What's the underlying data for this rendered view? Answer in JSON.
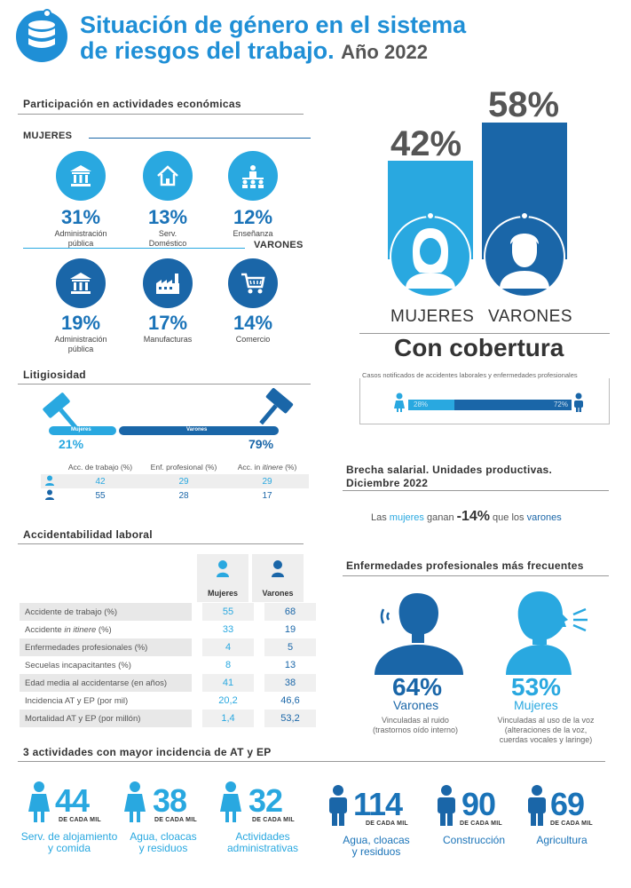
{
  "header": {
    "title_line1": "Situación de género en el sistema",
    "title_line2": "de riesgos del trabajo.",
    "year": "Año 2022",
    "icon": "database-icon"
  },
  "participation": {
    "title": "Participación en actividades económicas",
    "mujeres_label": "MUJERES",
    "varones_label": "VARONES",
    "mujeres": [
      {
        "pct": "31%",
        "label1": "Administración",
        "label2": "pública",
        "icon": "government-building-icon"
      },
      {
        "pct": "13%",
        "label1": "Serv.",
        "label2": "Doméstico",
        "icon": "house-icon"
      },
      {
        "pct": "12%",
        "label1": "Enseñanza",
        "label2": "",
        "icon": "classroom-icon"
      }
    ],
    "varones": [
      {
        "pct": "19%",
        "label1": "Administración",
        "label2": "pública",
        "icon": "government-building-icon"
      },
      {
        "pct": "17%",
        "label1": "Manufacturas",
        "label2": "",
        "icon": "factory-icon"
      },
      {
        "pct": "14%",
        "label1": "Comercio",
        "label2": "",
        "icon": "shopping-cart-icon"
      }
    ]
  },
  "coverage": {
    "mujeres_pct": "42%",
    "varones_pct": "58%",
    "mujeres_value": 42,
    "varones_value": 58,
    "mujeres_label": "MUJERES",
    "varones_label": "VARONES",
    "title": "Con cobertura",
    "cases_caption": "Casos notificados de accidentes laborales y enfermedades profesionales",
    "cases_mujeres_pct": "28%",
    "cases_varones_pct": "72%",
    "cases_mujeres_value": 28,
    "cases_varones_value": 72,
    "colors": {
      "mujeres": "#29a8e0",
      "varones": "#1a66a8"
    }
  },
  "litigiosidad": {
    "title": "Litigiosidad",
    "mujeres_label": "Mujeres",
    "varones_label": "Varones",
    "mujeres_pct": "21%",
    "varones_pct": "79%",
    "headers": [
      "Acc. de trabajo (%)",
      "Enf. profesional (%)",
      "Acc. in "
    ],
    "header_italic": "itinere",
    "header_tail": " (%)",
    "rows": [
      {
        "values": [
          "42",
          "29",
          "29"
        ]
      },
      {
        "values": [
          "55",
          "28",
          "17"
        ]
      }
    ]
  },
  "brecha": {
    "title_line1": "Brecha salarial. Unidades productivas.",
    "title_line2": "Diciembre 2022",
    "text_pre": "Las ",
    "text_women": "mujeres",
    "text_mid": " ganan ",
    "value": "-14%",
    "text_post": " que los ",
    "text_men": "varones"
  },
  "accidentabilidad": {
    "title": "Accidentabilidad laboral",
    "col_mujeres": "Mujeres",
    "col_varones": "Varones",
    "rows": [
      {
        "label": "Accidente de trabajo (%)",
        "mujeres": "55",
        "varones": "68"
      },
      {
        "label_pre": "Accidente ",
        "label_it": "in itinere",
        "label_post": " (%)",
        "mujeres": "33",
        "varones": "19"
      },
      {
        "label": "Enfermedades profesionales (%)",
        "mujeres": "4",
        "varones": "5"
      },
      {
        "label": "Secuelas incapacitantes (%)",
        "mujeres": "8",
        "varones": "13"
      },
      {
        "label": "Edad media al accidentarse (en años)",
        "mujeres": "41",
        "varones": "38"
      },
      {
        "label": "Incidencia AT y EP (por mil)",
        "mujeres": "20,2",
        "varones": "46,6"
      },
      {
        "label": "Mortalidad AT y EP (por millón)",
        "mujeres": "1,4",
        "varones": "53,2"
      }
    ]
  },
  "enfermedades": {
    "title": "Enfermedades profesionales más frecuentes",
    "varones_pct": "64%",
    "varones_label": "Varones",
    "varones_desc1": "Vinculadas al ruido",
    "varones_desc2": "(trastornos oído interno)",
    "mujeres_pct": "53%",
    "mujeres_label": "Mujeres",
    "mujeres_desc1": "Vinculadas al uso de la voz",
    "mujeres_desc2": "(alteraciones de la voz,",
    "mujeres_desc3": "cuerdas vocales y laringe)"
  },
  "actividades": {
    "title": "3 actividades con mayor incidencia de AT y EP",
    "per_label": "DE CADA MIL",
    "mujeres": [
      {
        "value": "44",
        "label1": "Serv. de alojamiento",
        "label2": "y comida"
      },
      {
        "value": "38",
        "label1": "Agua, cloacas",
        "label2": "y residuos"
      },
      {
        "value": "32",
        "label1": "Actividades",
        "label2": "administrativas"
      }
    ],
    "varones": [
      {
        "value": "114",
        "label1": "Agua, cloacas",
        "label2": "y residuos"
      },
      {
        "value": "90",
        "label1": "Construcción",
        "label2": ""
      },
      {
        "value": "69",
        "label1": "Agricultura",
        "label2": ""
      }
    ]
  }
}
